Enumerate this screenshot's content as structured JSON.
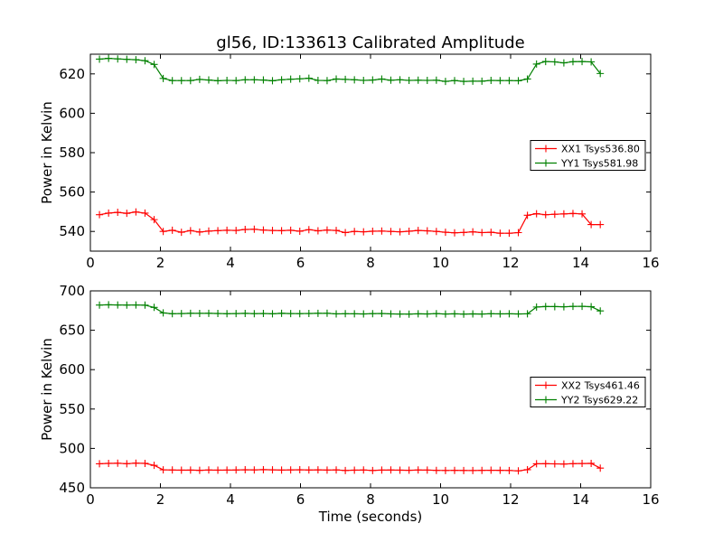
{
  "title": "gl56, ID:133613 Calibrated Amplitude",
  "chart_data": [
    {
      "type": "line",
      "title": "gl56, ID:133613 Calibrated Amplitude",
      "xlabel": "",
      "ylabel": "Power in Kelvin",
      "xlim": [
        0,
        16
      ],
      "ylim": [
        530,
        630
      ],
      "xticks": [
        0,
        2,
        4,
        6,
        8,
        10,
        12,
        14,
        16
      ],
      "yticks": [
        540,
        560,
        580,
        600,
        620
      ],
      "grid": false,
      "legend_position": "center-right",
      "x": [
        0.26,
        0.52,
        0.78,
        1.04,
        1.3,
        1.56,
        1.82,
        2.08,
        2.34,
        2.6,
        2.86,
        3.12,
        3.38,
        3.64,
        3.9,
        4.16,
        4.42,
        4.68,
        4.94,
        5.2,
        5.46,
        5.72,
        5.98,
        6.24,
        6.5,
        6.76,
        7.02,
        7.28,
        7.54,
        7.8,
        8.06,
        8.32,
        8.58,
        8.84,
        9.1,
        9.36,
        9.62,
        9.88,
        10.14,
        10.4,
        10.66,
        10.92,
        11.18,
        11.44,
        11.7,
        11.96,
        12.22,
        12.48,
        12.74,
        13.0,
        13.26,
        13.52,
        13.78,
        14.04,
        14.3,
        14.56
      ],
      "series": [
        {
          "name": "XX1 Tsys536.80",
          "color": "#ff0000",
          "values": [
            548.5,
            549.3,
            549.7,
            549.2,
            549.9,
            549.3,
            546.0,
            540.0,
            540.6,
            539.6,
            540.4,
            539.7,
            540.2,
            540.4,
            540.6,
            540.5,
            541.0,
            541.1,
            540.7,
            540.5,
            540.4,
            540.6,
            540.1,
            540.9,
            540.3,
            540.7,
            540.5,
            539.4,
            540.0,
            539.8,
            540.1,
            540.2,
            540.0,
            539.8,
            540.1,
            540.5,
            540.3,
            540.0,
            539.6,
            539.3,
            539.5,
            539.8,
            539.4,
            539.6,
            539.1,
            539.1,
            539.4,
            548.2,
            549.0,
            548.5,
            548.7,
            548.9,
            549.1,
            548.9,
            543.5,
            543.5
          ]
        },
        {
          "name": "YY1 Tsys581.98",
          "color": "#008000",
          "values": [
            627.5,
            627.9,
            627.6,
            627.4,
            627.2,
            626.7,
            624.8,
            617.7,
            616.6,
            616.6,
            616.6,
            617.2,
            616.9,
            616.5,
            616.7,
            616.6,
            617.0,
            617.0,
            616.9,
            616.5,
            617.0,
            617.3,
            617.5,
            617.8,
            616.7,
            616.6,
            617.4,
            617.2,
            617.0,
            616.7,
            616.9,
            617.4,
            616.8,
            617.0,
            616.7,
            616.8,
            616.7,
            616.8,
            616.2,
            616.6,
            616.2,
            616.3,
            616.3,
            616.7,
            616.6,
            616.6,
            616.5,
            617.4,
            625.0,
            626.3,
            626.1,
            625.6,
            626.2,
            626.3,
            626.1,
            620.2
          ]
        }
      ]
    },
    {
      "type": "line",
      "title": "",
      "xlabel": "Time (seconds)",
      "ylabel": "Power in Kelvin",
      "xlim": [
        0,
        16
      ],
      "ylim": [
        450,
        700
      ],
      "xticks": [
        0,
        2,
        4,
        6,
        8,
        10,
        12,
        14,
        16
      ],
      "yticks": [
        450,
        500,
        550,
        600,
        650,
        700
      ],
      "grid": false,
      "legend_position": "center-right",
      "x": [
        0.26,
        0.52,
        0.78,
        1.04,
        1.3,
        1.56,
        1.82,
        2.08,
        2.34,
        2.6,
        2.86,
        3.12,
        3.38,
        3.64,
        3.9,
        4.16,
        4.42,
        4.68,
        4.94,
        5.2,
        5.46,
        5.72,
        5.98,
        6.24,
        6.5,
        6.76,
        7.02,
        7.28,
        7.54,
        7.8,
        8.06,
        8.32,
        8.58,
        8.84,
        9.1,
        9.36,
        9.62,
        9.88,
        10.14,
        10.4,
        10.66,
        10.92,
        11.18,
        11.44,
        11.7,
        11.96,
        12.22,
        12.48,
        12.74,
        13.0,
        13.26,
        13.52,
        13.78,
        14.04,
        14.3,
        14.56
      ],
      "series": [
        {
          "name": "XX2 Tsys461.46",
          "color": "#ff0000",
          "values": [
            480.5,
            481.0,
            481.2,
            480.6,
            481.3,
            481.0,
            478.5,
            472.8,
            472.6,
            472.4,
            472.5,
            472.2,
            472.6,
            472.4,
            472.5,
            472.6,
            472.9,
            472.7,
            473.0,
            472.8,
            472.5,
            472.7,
            472.9,
            472.6,
            472.8,
            472.5,
            472.7,
            472.0,
            472.4,
            472.6,
            472.0,
            472.5,
            472.6,
            472.4,
            472.3,
            472.6,
            472.5,
            472.1,
            472.0,
            472.1,
            472.0,
            471.9,
            472.1,
            472.3,
            472.2,
            472.0,
            471.5,
            473.0,
            480.5,
            480.6,
            480.4,
            480.2,
            480.6,
            480.9,
            481.0,
            475.0
          ]
        },
        {
          "name": "YY2 Tsys629.22",
          "color": "#008000",
          "values": [
            682.0,
            682.3,
            682.1,
            682.0,
            682.1,
            681.9,
            679.0,
            672.0,
            671.0,
            671.2,
            671.5,
            671.4,
            671.5,
            671.3,
            671.0,
            671.2,
            671.4,
            671.1,
            671.3,
            670.9,
            671.5,
            671.2,
            671.1,
            671.3,
            671.5,
            671.6,
            670.8,
            671.0,
            670.9,
            670.7,
            671.1,
            671.3,
            670.8,
            670.6,
            670.5,
            670.9,
            670.7,
            671.1,
            670.6,
            670.9,
            670.5,
            670.8,
            670.6,
            671.0,
            670.8,
            670.9,
            670.7,
            670.9,
            679.5,
            680.1,
            680.0,
            679.8,
            680.3,
            680.4,
            679.9,
            674.5
          ]
        }
      ]
    }
  ]
}
